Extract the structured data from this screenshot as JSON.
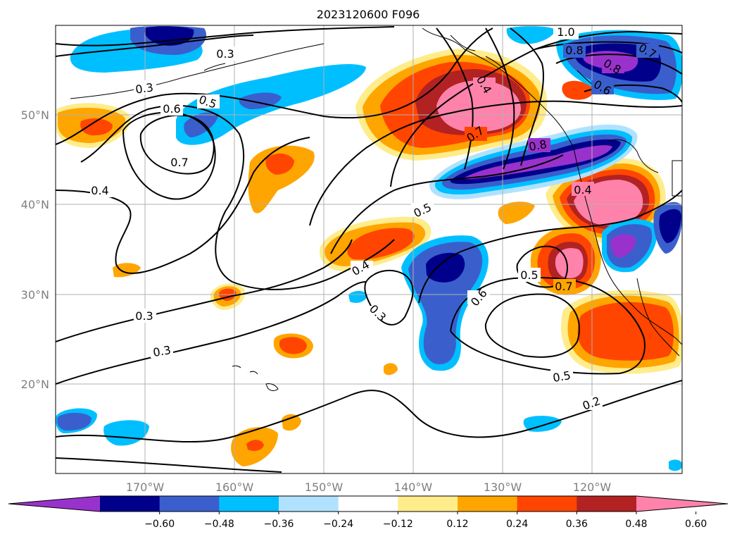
{
  "title": "2023120600 F096",
  "lon_ticks": [
    "170°W",
    "160°W",
    "150°W",
    "140°W",
    "130°W",
    "120°W"
  ],
  "lat_ticks": [
    "50°N",
    "40°N",
    "30°N",
    "20°N"
  ],
  "colorbar": {
    "colors": [
      "#9932CC",
      "#00008B",
      "#3A5FCD",
      "#00BFFF",
      "#B0E2FF",
      "#FFFFFF",
      "#FFEC8B",
      "#FFA500",
      "#FF4500",
      "#B22222",
      "#FF82AB"
    ],
    "tick_labels": [
      "−0.60",
      "−0.48",
      "−0.36",
      "−0.24",
      "−0.12",
      "0.12",
      "0.24",
      "0.36",
      "0.48",
      "0.60"
    ]
  },
  "contour_labels": [
    "0.4",
    "0.3",
    "0.3",
    "0.6",
    "0.5",
    "0.7",
    "0.4",
    "0.3",
    "0.3",
    "0.5",
    "0.4",
    "0.3",
    "0.6",
    "0.5",
    "0.7",
    "0.7",
    "0.8",
    "0.4",
    "0.5",
    "0.2",
    "1.0",
    "0.8",
    "0.7",
    "0.8",
    "0.6"
  ]
}
